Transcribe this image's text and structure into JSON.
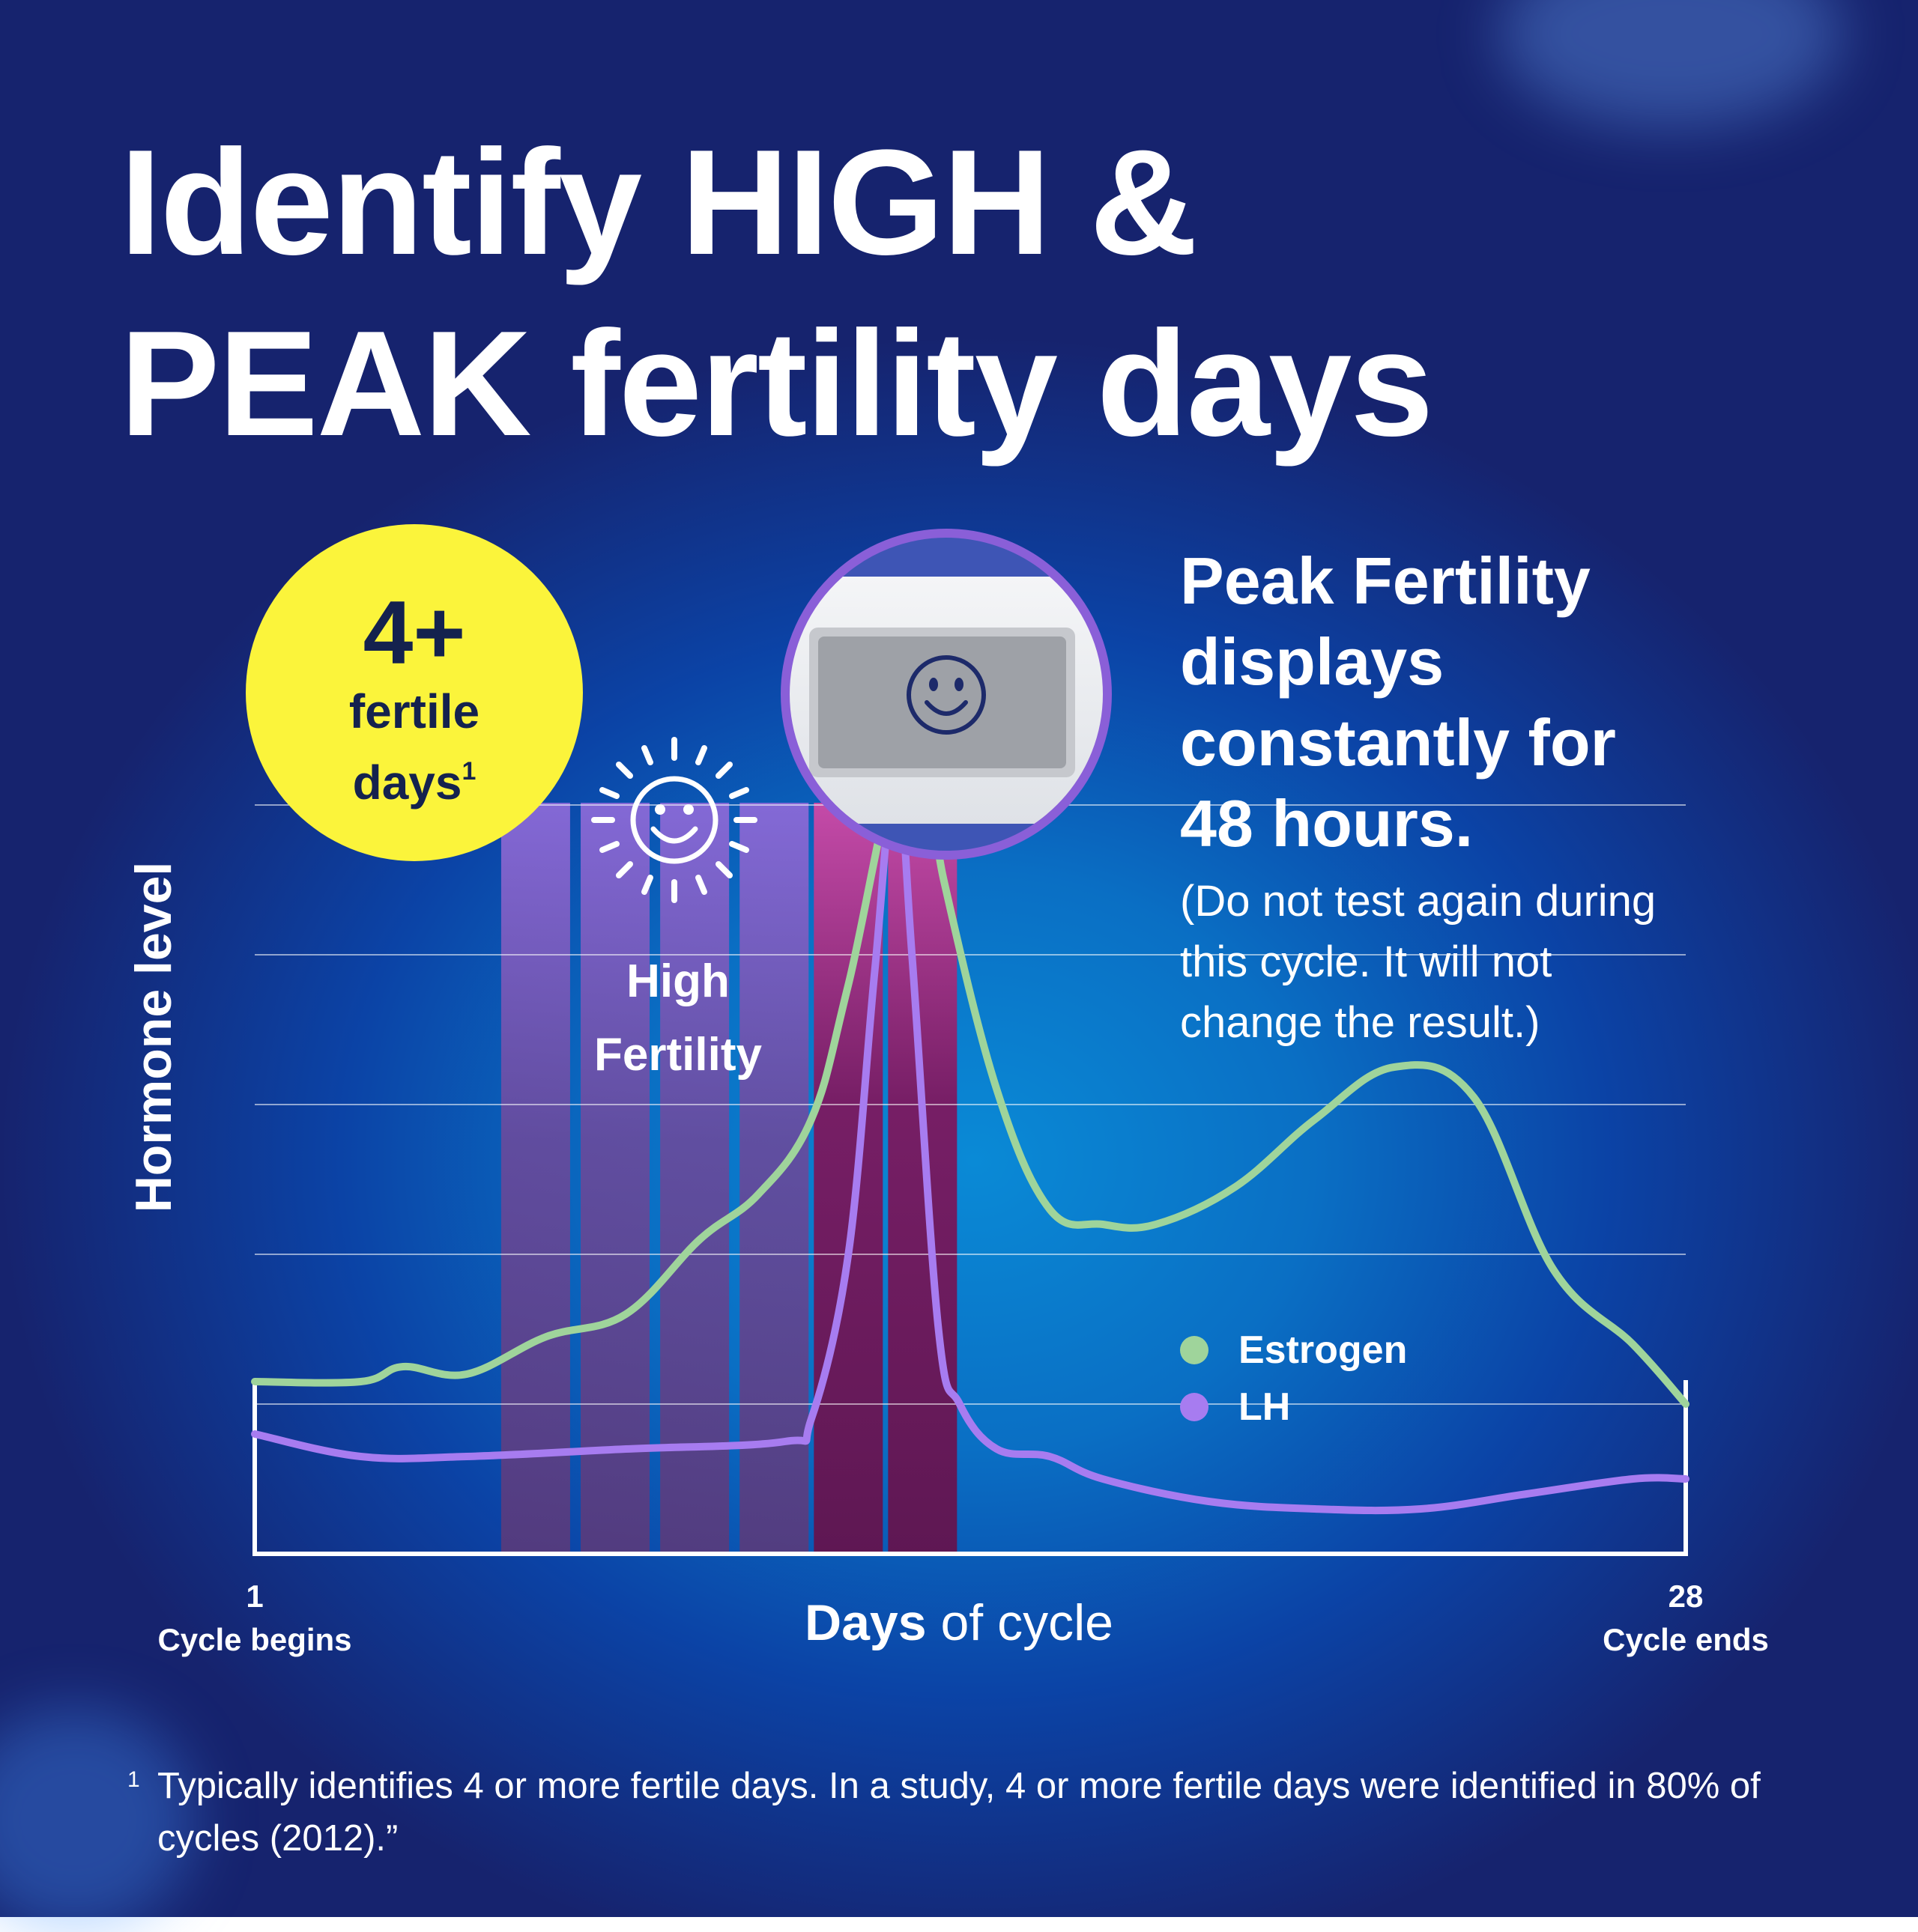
{
  "headline": {
    "line1": "Identify HIGH &",
    "line2": "PEAK fertility days"
  },
  "badge": {
    "big": "4+",
    "line1": "fertile",
    "line2": "days",
    "footnote_mark": "1"
  },
  "high_fertility_label": {
    "line1": "High",
    "line2": "Fertility"
  },
  "peak_text": {
    "heading": [
      "Peak Fertility",
      "displays",
      "constantly for",
      "48 hours."
    ],
    "note": [
      "(Do not test again during",
      "this cycle. It will not",
      "change the result.)"
    ]
  },
  "footnote": {
    "mark": "1",
    "text": "Typically identifies 4 or more fertile days. In a study, 4 or more fertile days were identified in 80% of cycles (2012).”"
  },
  "colors": {
    "estrogen": "#9fd49b",
    "lh": "#a77cf0",
    "high_band": "#8a6ad8",
    "peak_band": "#c13c9b",
    "badge": "#fbf43b",
    "badge_text": "#14224e"
  },
  "icons": {
    "high": "smiley-with-rays-icon",
    "peak": "smiley-face-icon",
    "device": "test-stick-display"
  },
  "chart_data": {
    "type": "line",
    "title": "",
    "xlabel": {
      "bold": "Days",
      "rest": " of cycle"
    },
    "ylabel": "Hormone level",
    "x_ticks": [
      {
        "day": 1,
        "number": "1",
        "caption": "Cycle begins"
      },
      {
        "day": 28,
        "number": "28",
        "caption": "Cycle ends"
      }
    ],
    "xlim": [
      1,
      28
    ],
    "ylim": [
      0,
      100
    ],
    "grid": true,
    "gridlines": [
      20,
      40,
      60,
      80,
      100
    ],
    "legend_position": "right",
    "high_fertility_days": [
      6.3,
      7.8,
      9.3,
      10.8
    ],
    "peak_fertility_days": [
      12.2,
      13.6
    ],
    "series": [
      {
        "name": "Estrogen",
        "x": [
          1,
          3,
          3.8,
          5,
          6.5,
          8,
          9.4,
          10.5,
          11.5,
          12.2,
          13.4,
          14,
          15,
          16,
          17,
          18,
          19.5,
          21,
          22.5,
          24,
          25.5,
          27,
          28
        ],
        "y": [
          23,
          23,
          25,
          24,
          29,
          32,
          42,
          48,
          58,
          76,
          112,
          90,
          62,
          46,
          44,
          44,
          49,
          58,
          65,
          61,
          38,
          28,
          20
        ]
      },
      {
        "name": "LH",
        "x": [
          1,
          3,
          5,
          8,
          11,
          11.5,
          12.2,
          12.7,
          13.1,
          13.4,
          13.9,
          14.3,
          15,
          16,
          17,
          19,
          21,
          23,
          25,
          27,
          28
        ],
        "y": [
          16,
          13,
          13,
          14,
          15,
          18,
          40,
          78,
          105,
          80,
          30,
          20,
          14,
          13,
          10,
          7,
          6,
          6,
          8,
          10,
          10
        ]
      }
    ]
  }
}
